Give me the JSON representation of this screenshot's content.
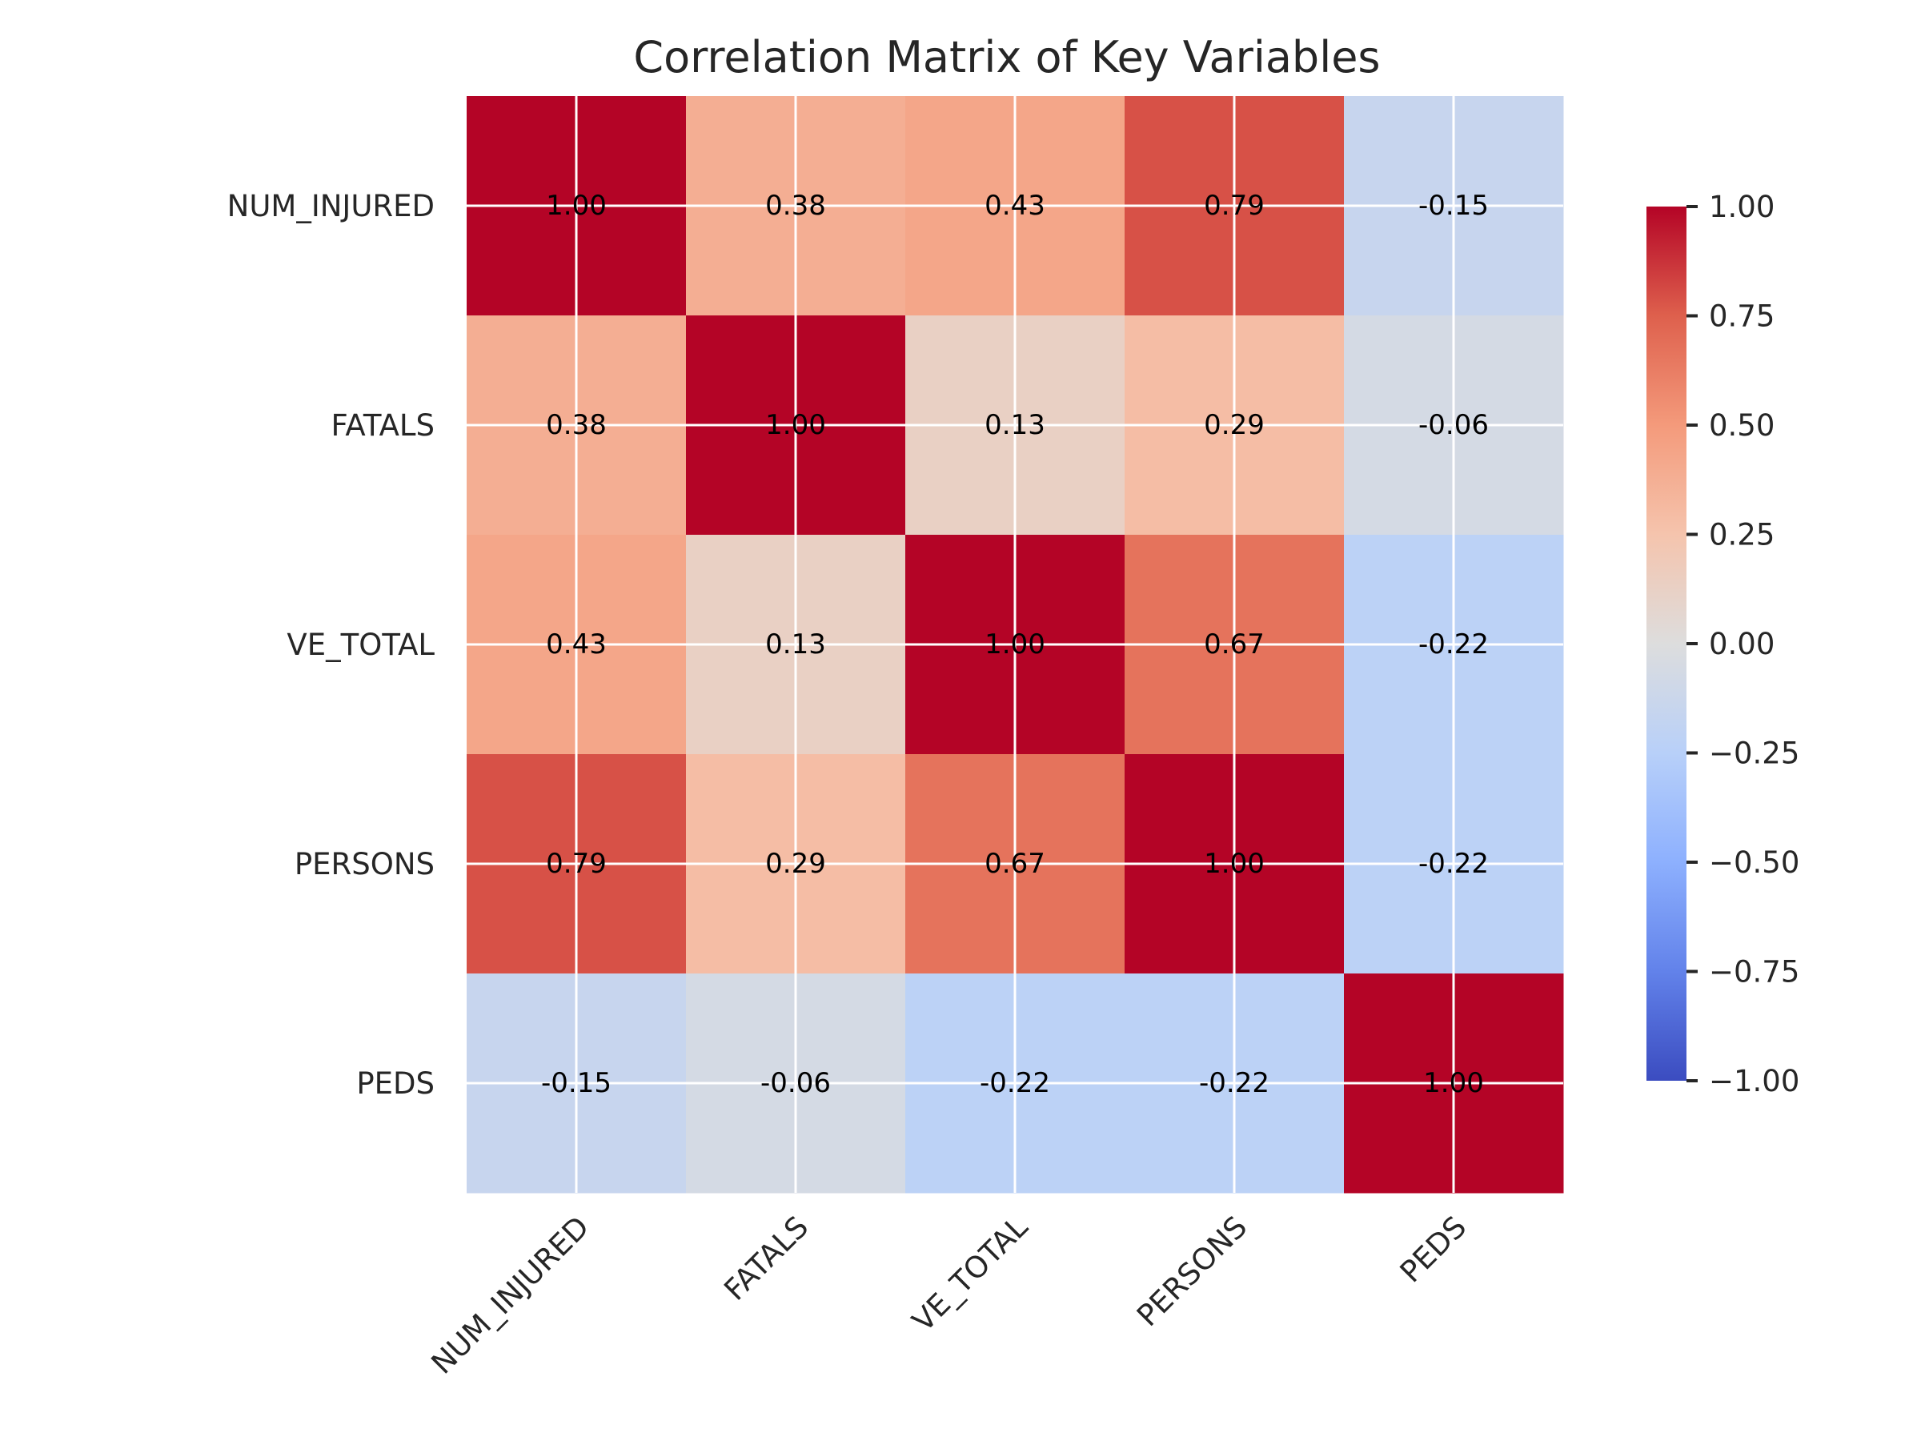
{
  "chart_data": {
    "type": "heatmap",
    "title": "Correlation Matrix of Key Variables",
    "xlabel": "",
    "ylabel": "",
    "row_labels": [
      "NUM_INJURED",
      "FATALS",
      "VE_TOTAL",
      "PERSONS",
      "PEDS"
    ],
    "col_labels": [
      "NUM_INJURED",
      "FATALS",
      "VE_TOTAL",
      "PERSONS",
      "PEDS"
    ],
    "values": [
      [
        1.0,
        0.38,
        0.43,
        0.79,
        -0.15
      ],
      [
        0.38,
        1.0,
        0.13,
        0.29,
        -0.06
      ],
      [
        0.43,
        0.13,
        1.0,
        0.67,
        -0.22
      ],
      [
        0.79,
        0.29,
        0.67,
        1.0,
        -0.22
      ],
      [
        -0.15,
        -0.06,
        -0.22,
        -0.22,
        1.0
      ]
    ],
    "annotations": [
      [
        "1.00",
        "0.38",
        "0.43",
        "0.79",
        "-0.15"
      ],
      [
        "0.38",
        "1.00",
        "0.13",
        "0.29",
        "-0.06"
      ],
      [
        "0.43",
        "0.13",
        "1.00",
        "0.67",
        "-0.22"
      ],
      [
        "0.79",
        "0.29",
        "0.67",
        "1.00",
        "-0.22"
      ],
      [
        "-0.15",
        "-0.06",
        "-0.22",
        "-0.22",
        "1.00"
      ]
    ],
    "colormap": "coolwarm",
    "vmin": -1.0,
    "vmax": 1.0,
    "colorbar_ticks": [
      "1.00",
      "0.75",
      "0.50",
      "0.25",
      "0.00",
      "−0.25",
      "−0.50",
      "−0.75",
      "−1.00"
    ],
    "colorbar_tick_values": [
      1.0,
      0.75,
      0.5,
      0.25,
      0.0,
      -0.25,
      -0.5,
      -0.75,
      -1.0
    ],
    "grid": true,
    "grid_color": "#ffffff"
  }
}
